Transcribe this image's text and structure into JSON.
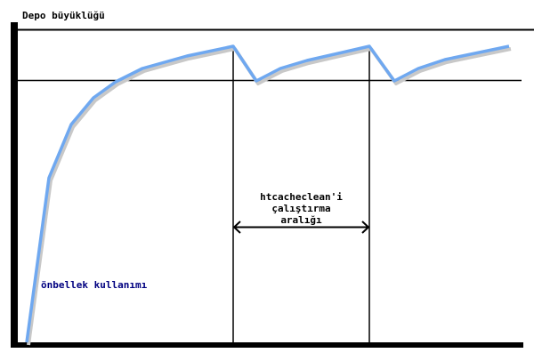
{
  "labels": {
    "y_axis": "Depo büyüklüğü",
    "interval": [
      "htcacheclean'i",
      "çalıştırma",
      "aralığı"
    ],
    "usage": "önbellek kullanımı"
  },
  "colors": {
    "curve": "#6fa8f0",
    "usage_text": "#000080",
    "lines": "#000000"
  }
}
